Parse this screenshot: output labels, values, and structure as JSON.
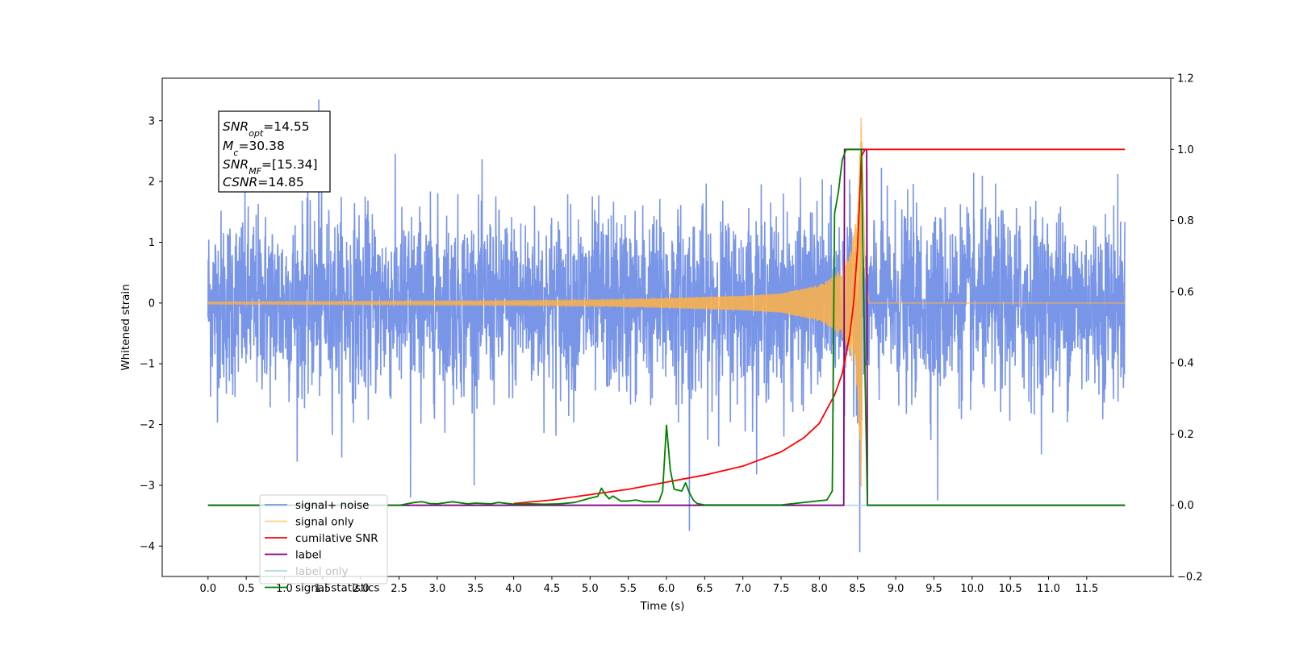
{
  "chart_data": {
    "type": "line",
    "xlabel": "Time (s)",
    "ylabel_left": "Whitened strain",
    "ylabel_right": "",
    "xlim": [
      -0.6,
      12.6
    ],
    "ylim_left": [
      -4.5,
      3.7
    ],
    "ylim_right": [
      -0.2,
      1.2
    ],
    "x_ticks": [
      0.0,
      0.5,
      1.0,
      1.5,
      2.0,
      2.5,
      3.0,
      3.5,
      4.0,
      4.5,
      5.0,
      5.5,
      6.0,
      6.5,
      7.0,
      7.5,
      8.0,
      8.5,
      9.0,
      9.5,
      10.0,
      10.5,
      11.0,
      11.5
    ],
    "x_tick_labels": [
      "0.0",
      "0.5",
      "1.0",
      "1.5",
      "2.0",
      "2.5",
      "3.0",
      "3.5",
      "4.0",
      "4.5",
      "5.0",
      "5.5",
      "6.0",
      "6.5",
      "7.0",
      "7.5",
      "8.0",
      "8.5",
      "9.0",
      "9.5",
      "10.0",
      "10.5",
      "11.0",
      "11.5"
    ],
    "y_left_ticks": [
      -4,
      -3,
      -2,
      -1,
      0,
      1,
      2,
      3
    ],
    "y_left_tick_labels": [
      "−4",
      "−3",
      "−2",
      "−1",
      "0",
      "1",
      "2",
      "3"
    ],
    "y_right_ticks": [
      -0.2,
      0.0,
      0.2,
      0.4,
      0.6,
      0.8,
      1.0,
      1.2
    ],
    "y_right_tick_labels": [
      "−0.2",
      "0.0",
      "0.2",
      "0.4",
      "0.6",
      "0.8",
      "1.0",
      "1.2"
    ],
    "grid": false,
    "legend_position": "lower-left",
    "annotation": {
      "snr_opt": "14.55",
      "mc": "30.38",
      "snr_mf": "[15.34]",
      "csnr": "14.85"
    },
    "series": [
      {
        "name": "signal+ noise",
        "axis": "left",
        "color": "#6a8ae4",
        "description": "whitened strain noise spanning roughly ±2.5 with spikes to ±3.3, 0 to 12 s",
        "x_range": [
          0.0,
          12.0
        ],
        "amplitude_typical": 2.2,
        "spikes": [
          [
            1.45,
            3.35
          ],
          [
            8.53,
            -4.1
          ],
          [
            6.3,
            -3.75
          ],
          [
            2.65,
            -3.2
          ],
          [
            9.55,
            -3.25
          ]
        ]
      },
      {
        "name": "signal only",
        "axis": "left",
        "color": "#ffb347",
        "description": "chirp growing toward merger near 8.55 s, peak about 3.2",
        "x": [
          0.0,
          2.0,
          4.0,
          5.0,
          6.0,
          6.5,
          7.0,
          7.5,
          8.0,
          8.2,
          8.4,
          8.5,
          8.55,
          8.6,
          8.65,
          12.0
        ],
        "envelope": [
          0.02,
          0.03,
          0.04,
          0.05,
          0.08,
          0.1,
          0.12,
          0.16,
          0.3,
          0.45,
          0.8,
          1.5,
          3.2,
          0.5,
          0.0,
          0.0
        ]
      },
      {
        "name": "cumilative SNR",
        "axis": "right",
        "color": "#ff0000",
        "x": [
          4.0,
          4.5,
          5.0,
          5.5,
          6.0,
          6.5,
          7.0,
          7.5,
          7.8,
          8.0,
          8.2,
          8.3,
          8.4,
          8.45,
          8.5,
          8.55,
          8.6,
          12.0
        ],
        "y": [
          0.005,
          0.015,
          0.03,
          0.045,
          0.065,
          0.085,
          0.11,
          0.15,
          0.19,
          0.23,
          0.31,
          0.37,
          0.48,
          0.57,
          0.72,
          0.98,
          1.0,
          1.0
        ]
      },
      {
        "name": "label",
        "axis": "right",
        "color": "#800080",
        "x": [
          0.0,
          8.32,
          8.33,
          8.62,
          8.63,
          12.0
        ],
        "y": [
          0.0,
          0.0,
          1.0,
          1.0,
          0.0,
          0.0
        ]
      },
      {
        "name": "label only",
        "axis": "right",
        "color": "#add8e6",
        "x": [
          0.0,
          12.0
        ],
        "y": [
          0.0,
          0.0
        ]
      },
      {
        "name": "signal statistics",
        "axis": "right",
        "color": "#008000",
        "x": [
          0.0,
          2.5,
          2.7,
          2.8,
          2.9,
          3.0,
          3.2,
          3.4,
          3.5,
          3.7,
          3.8,
          4.0,
          4.2,
          4.4,
          4.6,
          4.8,
          5.0,
          5.1,
          5.15,
          5.2,
          5.25,
          5.3,
          5.4,
          5.5,
          5.6,
          5.7,
          5.8,
          5.9,
          5.95,
          6.0,
          6.05,
          6.1,
          6.2,
          6.25,
          6.3,
          6.35,
          6.4,
          6.5,
          7.5,
          8.1,
          8.17,
          8.2,
          8.25,
          8.3,
          8.35,
          8.4,
          8.45,
          8.55,
          8.6,
          8.63,
          8.7,
          12.0
        ],
        "y": [
          0.0,
          0.0,
          0.008,
          0.01,
          0.005,
          0.004,
          0.01,
          0.004,
          0.006,
          0.004,
          0.008,
          0.003,
          0.004,
          0.003,
          0.004,
          0.008,
          0.02,
          0.025,
          0.048,
          0.03,
          0.018,
          0.026,
          0.012,
          0.012,
          0.015,
          0.01,
          0.01,
          0.01,
          0.04,
          0.225,
          0.1,
          0.045,
          0.04,
          0.063,
          0.035,
          0.015,
          0.005,
          0.001,
          0.001,
          0.015,
          0.04,
          0.82,
          0.88,
          0.97,
          1.0,
          1.0,
          1.0,
          1.0,
          0.35,
          0.0,
          0.0,
          0.0
        ]
      }
    ]
  }
}
